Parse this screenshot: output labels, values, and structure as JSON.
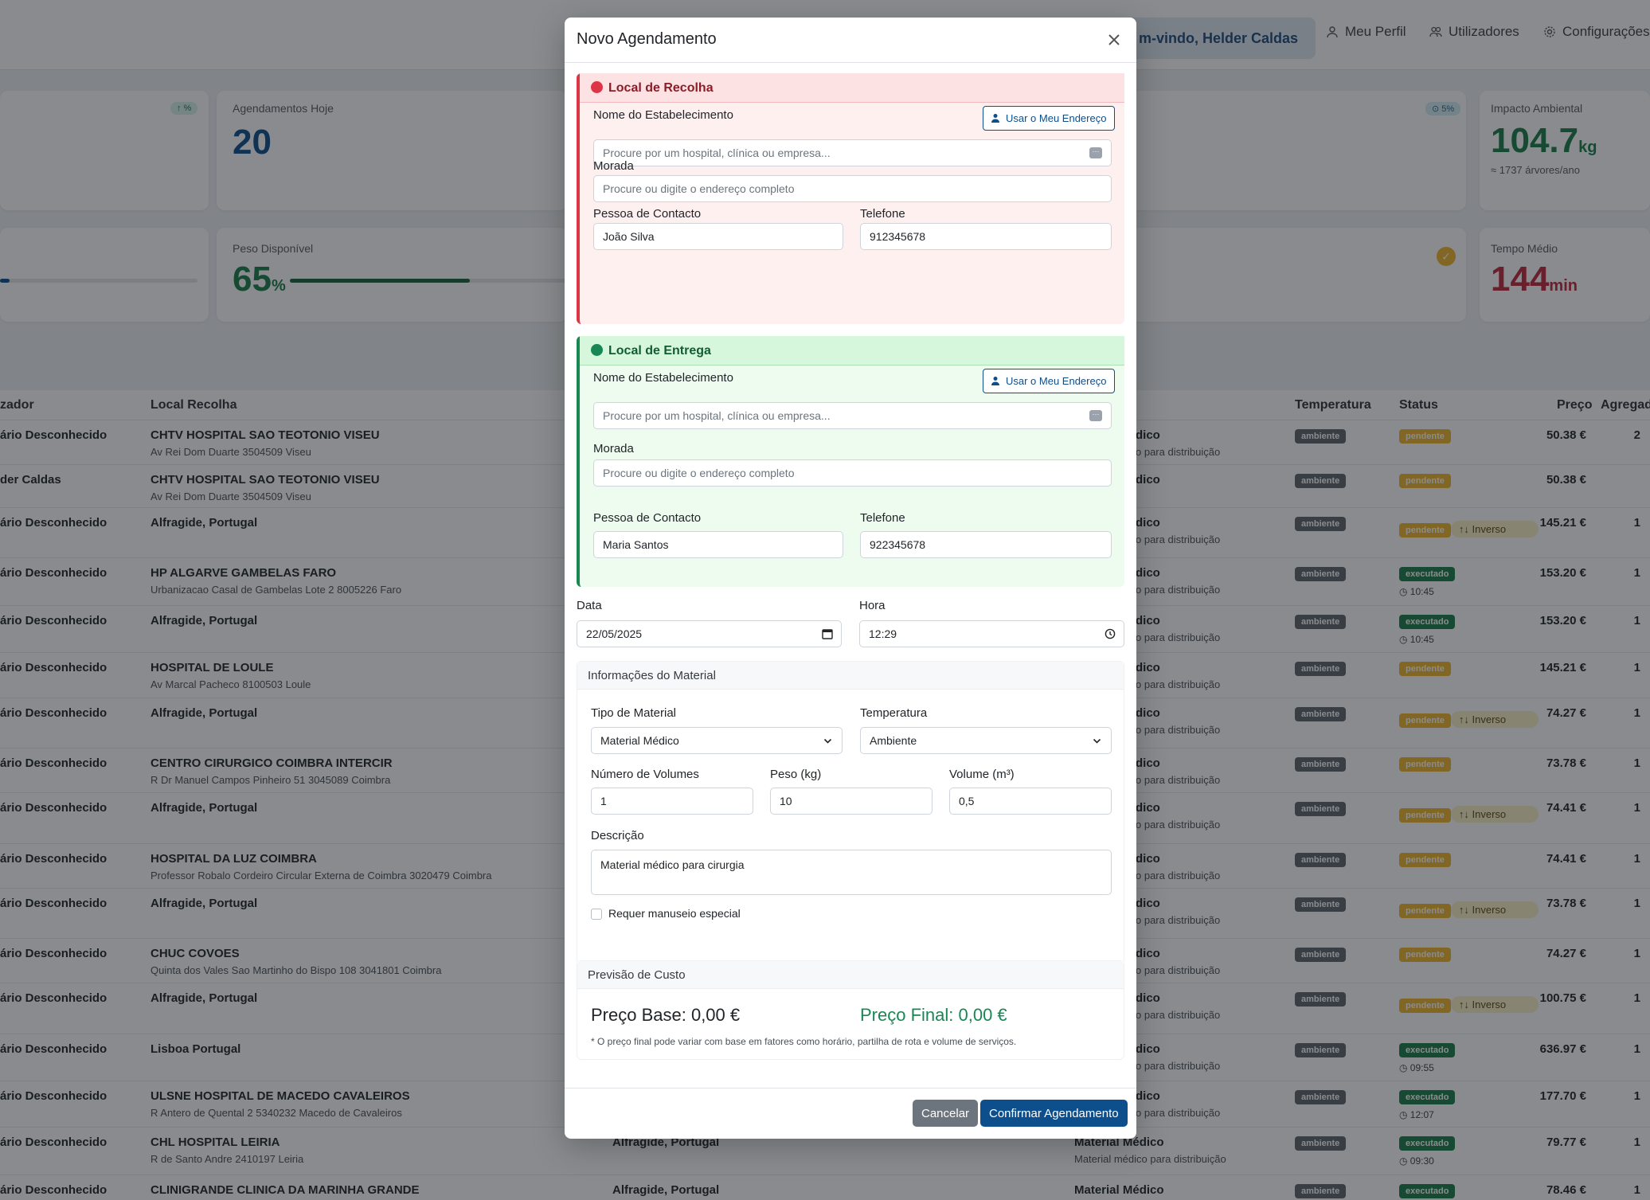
{
  "header": {
    "welcome": "m-vindo, Helder Caldas",
    "nav": [
      "Meu Perfil",
      "Utilizadores",
      "Configurações"
    ]
  },
  "stats": {
    "badge1": "↑ %",
    "appointments_today_label": "Agendamentos Hoje",
    "appointments_today_value": "20",
    "badge2": "⊙ 5%",
    "env_label": "Impacto Ambiental",
    "env_value": "104.7",
    "env_unit": "kg",
    "env_sub": "≈ 1737 árvores/ano",
    "weight_label": "Peso Disponível",
    "weight_value": "65",
    "weight_unit": "%",
    "weight_fraction": 0.65,
    "time_label": "Tempo Médio",
    "time_value": "144",
    "time_unit": "min"
  },
  "table": {
    "headers": [
      "zador",
      "Local Recolha",
      "Temperatura",
      "Status",
      "Preço",
      "Agregado"
    ],
    "rows": [
      {
        "user": "ário Desconhecido",
        "local": "CHTV HOSPITAL SAO TEOTONIO VISEU",
        "addr": "Av Rei Dom Duarte 3504509 Viseu",
        "dest": "",
        "dest_sub": "",
        "mat": "dico",
        "mat_sub": "o para distribuição",
        "temp": "ambiente",
        "status": "pendente",
        "extra": "",
        "price": "50.38 €",
        "agg": "2"
      },
      {
        "user": "der Caldas",
        "local": "CHTV HOSPITAL SAO TEOTONIO VISEU",
        "addr": "Av Rei Dom Duarte 3504509 Viseu",
        "dest": "",
        "dest_sub": "",
        "mat": "dico",
        "mat_sub": "",
        "temp": "ambiente",
        "status": "pendente",
        "extra": "",
        "price": "50.38 €",
        "agg": ""
      },
      {
        "user": "ário Desconhecido",
        "local": "Alfragide, Portugal",
        "addr": "",
        "dest": "",
        "dest_sub": "",
        "mat": "dico",
        "mat_sub": "o para distribuição",
        "temp": "ambiente",
        "status": "pendente",
        "extra": "↑↓ Inverso",
        "price": "145.21 €",
        "agg": "1"
      },
      {
        "user": "ário Desconhecido",
        "local": "HP ALGARVE GAMBELAS FARO",
        "addr": "Urbanizacao Casal de Gambelas Lote 2 8005226 Faro",
        "dest": "",
        "dest_sub": "",
        "mat": "dico",
        "mat_sub": "o para distribuição",
        "temp": "ambiente",
        "status": "executado",
        "extra": "◷ 10:45",
        "price": "153.20 €",
        "agg": "1"
      },
      {
        "user": "ário Desconhecido",
        "local": "Alfragide, Portugal",
        "addr": "",
        "dest": "",
        "dest_sub": "",
        "mat": "dico",
        "mat_sub": "o para distribuição",
        "temp": "ambiente",
        "status": "executado",
        "extra": "◷ 10:45",
        "price": "153.20 €",
        "agg": "1"
      },
      {
        "user": "ário Desconhecido",
        "local": "HOSPITAL DE LOULE",
        "addr": "Av Marcal Pacheco 8100503 Loule",
        "dest": "",
        "dest_sub": "",
        "mat": "dico",
        "mat_sub": "o para distribuição",
        "temp": "ambiente",
        "status": "pendente",
        "extra": "",
        "price": "145.21 €",
        "agg": "1"
      },
      {
        "user": "ário Desconhecido",
        "local": "Alfragide, Portugal",
        "addr": "",
        "dest": "",
        "dest_sub": "",
        "mat": "dico",
        "mat_sub": "o para distribuição",
        "temp": "ambiente",
        "status": "pendente",
        "extra": "↑↓ Inverso",
        "price": "74.27 €",
        "agg": "1"
      },
      {
        "user": "ário Desconhecido",
        "local": "CENTRO CIRURGICO COIMBRA INTERCIR",
        "addr": "R Dr Manuel Campos Pinheiro 51 3045089 Coimbra",
        "dest": "",
        "dest_sub": "",
        "mat": "dico",
        "mat_sub": "o para distribuição",
        "temp": "ambiente",
        "status": "pendente",
        "extra": "",
        "price": "73.78 €",
        "agg": "1"
      },
      {
        "user": "ário Desconhecido",
        "local": "Alfragide, Portugal",
        "addr": "",
        "dest": "",
        "dest_sub": "",
        "mat": "dico",
        "mat_sub": "o para distribuição",
        "temp": "ambiente",
        "status": "pendente",
        "extra": "↑↓ Inverso",
        "price": "74.41 €",
        "agg": "1"
      },
      {
        "user": "ário Desconhecido",
        "local": "HOSPITAL DA LUZ COIMBRA",
        "addr": "Professor Robalo Cordeiro Circular Externa de Coimbra 3020479 Coimbra",
        "dest": "",
        "dest_sub": "",
        "mat": "dico",
        "mat_sub": "o para distribuição",
        "temp": "ambiente",
        "status": "pendente",
        "extra": "",
        "price": "74.41 €",
        "agg": "1"
      },
      {
        "user": "ário Desconhecido",
        "local": "Alfragide, Portugal",
        "addr": "",
        "dest": "",
        "dest_sub": "",
        "mat": "dico",
        "mat_sub": "o para distribuição",
        "temp": "ambiente",
        "status": "pendente",
        "extra": "↑↓ Inverso",
        "price": "73.78 €",
        "agg": "1"
      },
      {
        "user": "ário Desconhecido",
        "local": "CHUC COVOES",
        "addr": "Quinta dos Vales Sao Martinho do Bispo 108 3041801 Coimbra",
        "dest": "",
        "dest_sub": "",
        "mat": "dico",
        "mat_sub": "o para distribuição",
        "temp": "ambiente",
        "status": "pendente",
        "extra": "",
        "price": "74.27 €",
        "agg": "1"
      },
      {
        "user": "ário Desconhecido",
        "local": "Alfragide, Portugal",
        "addr": "",
        "dest": "",
        "dest_sub": "",
        "mat": "dico",
        "mat_sub": "o para distribuição",
        "temp": "ambiente",
        "status": "pendente",
        "extra": "↑↓ Inverso",
        "price": "100.75 €",
        "agg": "1"
      },
      {
        "user": "ário Desconhecido",
        "local": "Lisboa Portugal",
        "addr": "",
        "dest": "",
        "dest_sub": "",
        "mat": "dico",
        "mat_sub": "o para distribuição",
        "temp": "ambiente",
        "status": "executado",
        "extra": "◷ 09:55",
        "price": "636.97 €",
        "agg": "1"
      },
      {
        "user": "ário Desconhecido",
        "local": "ULSNE HOSPITAL DE MACEDO CAVALEIROS",
        "addr": "R Antero de Quental 2 5340232 Macedo de Cavaleiros",
        "dest": "",
        "dest_sub": "",
        "mat": "dico",
        "mat_sub": "o para distribuição",
        "temp": "ambiente",
        "status": "executado",
        "extra": "◷ 12:07",
        "price": "177.70 €",
        "agg": "1"
      },
      {
        "user": "ário Desconhecido",
        "local": "CHL HOSPITAL LEIRIA",
        "addr": "R de Santo Andre 2410197 Leiria",
        "dest": "Alfragide, Portugal",
        "dest_sub": "",
        "mat": "Material Médico",
        "mat_sub": "Material médico para distribuição",
        "temp": "ambiente",
        "status": "executado",
        "extra": "◷ 09:30",
        "price": "79.77 €",
        "agg": "1"
      },
      {
        "user": "ário Desconhecido",
        "local": "CLINIGRANDE CLINICA DA MARINHA GRANDE",
        "addr": "",
        "dest": "Alfragide, Portugal",
        "dest_sub": "",
        "mat": "Material Médico",
        "mat_sub": "",
        "temp": "ambiente",
        "status": "executado",
        "extra": "",
        "price": "78.46 €",
        "agg": "1"
      }
    ]
  },
  "modal": {
    "title": "Novo Agendamento",
    "pickup": {
      "title": "Local de Recolha",
      "establishment_label": "Nome do Estabelecimento",
      "use_address": "Usar o Meu Endereço",
      "establishment_placeholder": "Procure por um hospital, clínica ou empresa...",
      "address_label": "Morada",
      "address_placeholder": "Procure ou digite o endereço completo",
      "contact_label": "Pessoa de Contacto",
      "contact_value": "João Silva",
      "phone_label": "Telefone",
      "phone_value": "912345678"
    },
    "delivery": {
      "title": "Local de Entrega",
      "establishment_label": "Nome do Estabelecimento",
      "use_address": "Usar o Meu Endereço",
      "establishment_placeholder": "Procure por um hospital, clínica ou empresa...",
      "address_label": "Morada",
      "address_placeholder": "Procure ou digite o endereço completo",
      "contact_label": "Pessoa de Contacto",
      "contact_value": "Maria Santos",
      "phone_label": "Telefone",
      "phone_value": "922345678"
    },
    "date_label": "Data",
    "date_value": "22/05/2025",
    "time_label": "Hora",
    "time_value": "12:29",
    "material": {
      "title": "Informações do Material",
      "type_label": "Tipo de Material",
      "type_value": "Material Médico",
      "temp_label": "Temperatura",
      "temp_value": "Ambiente",
      "volumes_label": "Número de Volumes",
      "volumes_value": "1",
      "weight_label": "Peso (kg)",
      "weight_value": "10",
      "volume_label": "Volume (m³)",
      "volume_value": "0,5",
      "desc_label": "Descrição",
      "desc_value": "Material médico para cirurgia",
      "special_label": "Requer manuseio especial"
    },
    "cost": {
      "title": "Previsão de Custo",
      "base": "Preço Base: 0,00 €",
      "final": "Preço Final: 0,00 €",
      "note": "* O preço final pode variar com base em fatores como horário, partilha de rota e volume de serviços."
    },
    "cancel": "Cancelar",
    "confirm": "Confirmar Agendamento"
  }
}
